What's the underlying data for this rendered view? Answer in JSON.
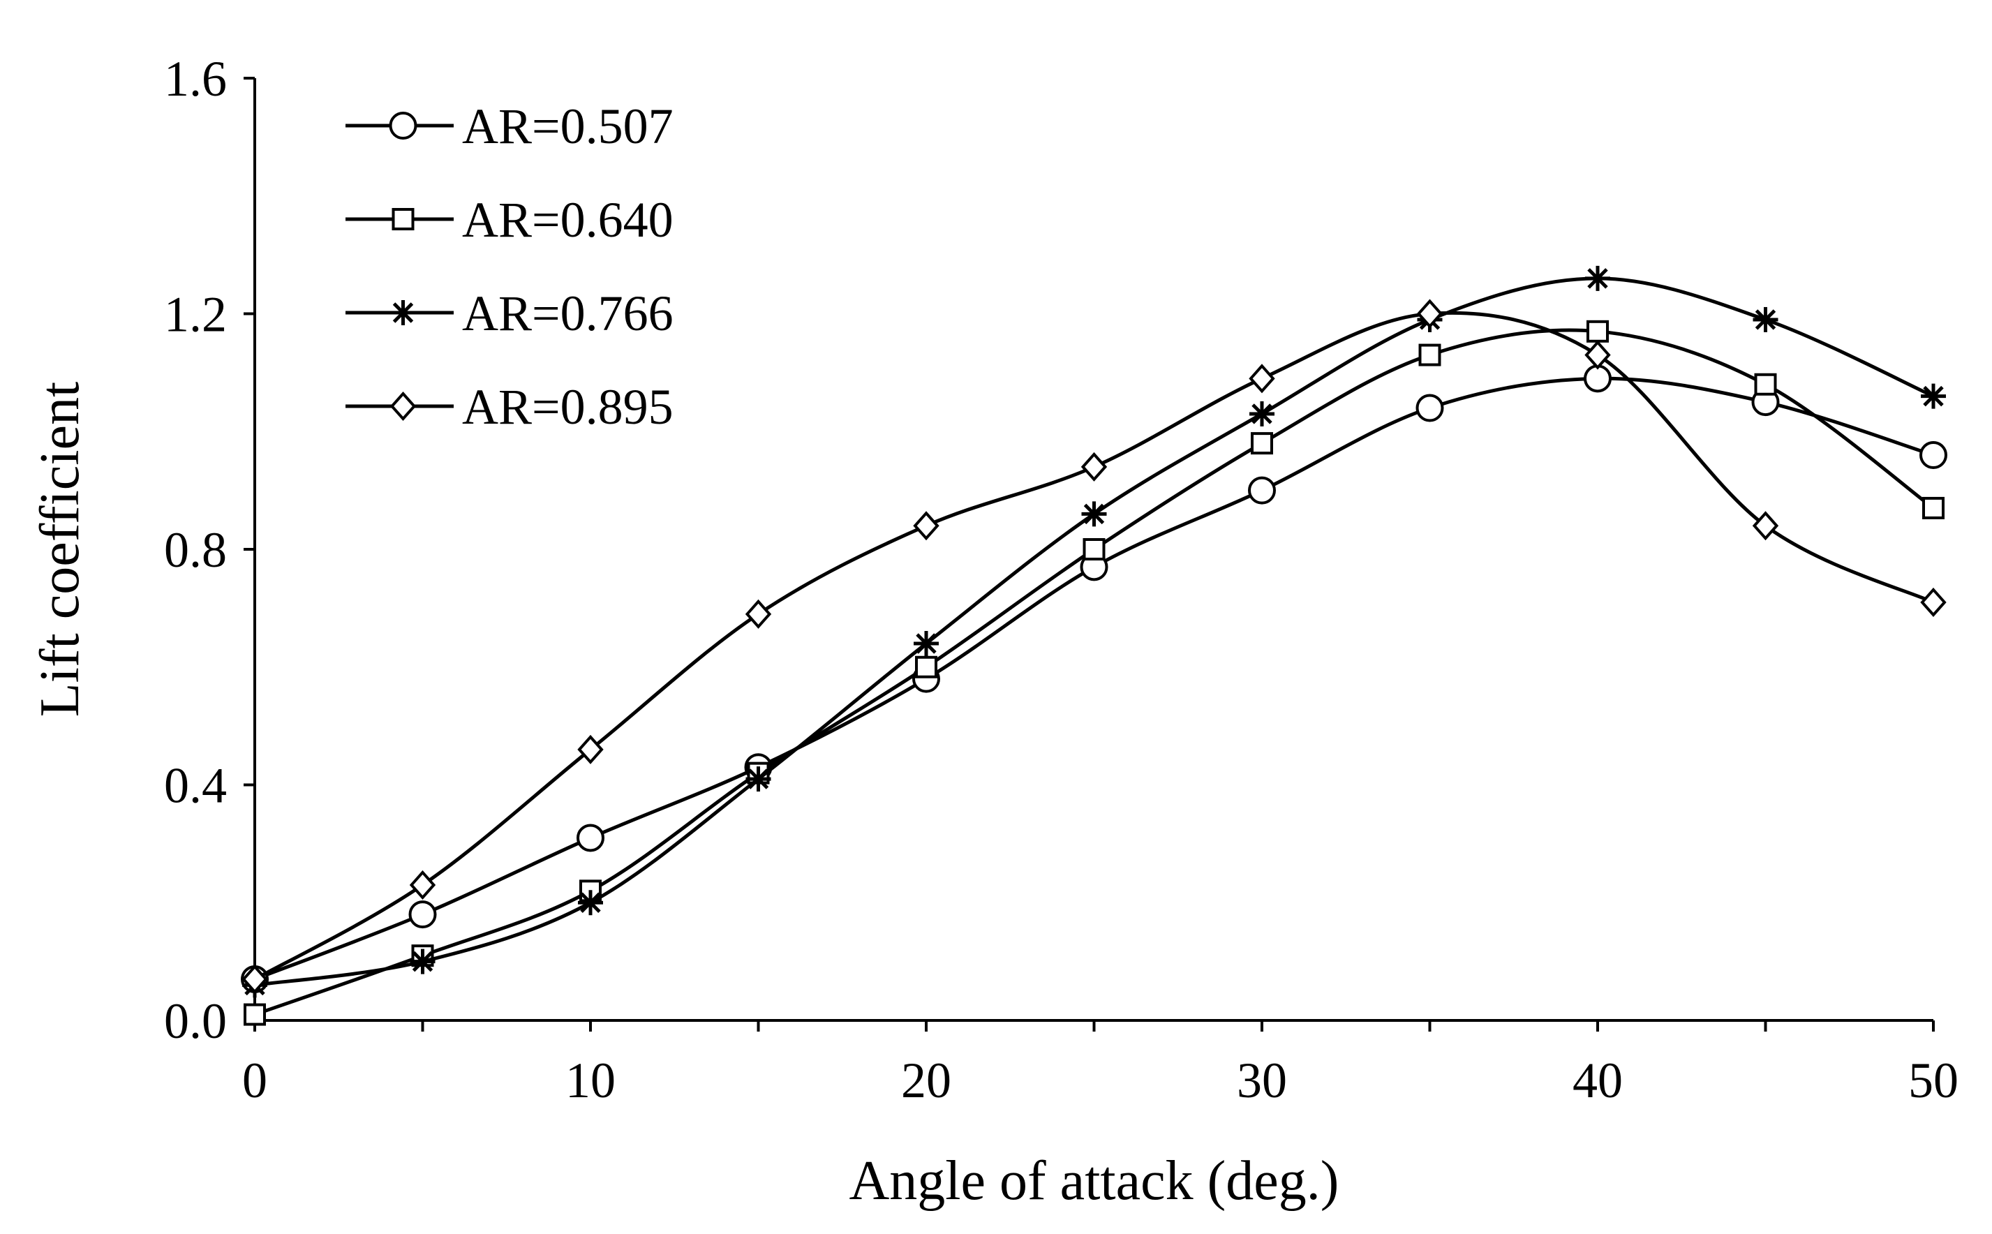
{
  "chart_data": {
    "type": "line",
    "xlabel": "Angle of attack (deg.)",
    "ylabel": "Lift coefficient",
    "xlim": [
      0,
      50
    ],
    "ylim": [
      0,
      1.6
    ],
    "xticks": [
      "0",
      "10",
      "20",
      "30",
      "40",
      "50"
    ],
    "xtick_values": [
      0,
      10,
      20,
      30,
      40,
      50
    ],
    "yticks": [
      "0.0",
      "0.4",
      "0.8",
      "1.2",
      "1.6"
    ],
    "ytick_values": [
      0,
      0.4,
      0.8,
      1.2,
      1.6
    ],
    "grid": false,
    "legend_position": "top-left",
    "x": [
      0,
      5,
      10,
      15,
      20,
      25,
      30,
      35,
      40,
      45,
      50
    ],
    "series": [
      {
        "name": "AR=0.507",
        "marker": "circle",
        "values": [
          0.07,
          0.18,
          0.31,
          0.43,
          0.58,
          0.77,
          0.9,
          1.04,
          1.09,
          1.05,
          0.96
        ]
      },
      {
        "name": "AR=0.640",
        "marker": "square",
        "values": [
          0.01,
          0.11,
          0.22,
          0.42,
          0.6,
          0.8,
          0.98,
          1.13,
          1.17,
          1.08,
          0.87
        ]
      },
      {
        "name": "AR=0.766",
        "marker": "star",
        "values": [
          0.06,
          0.1,
          0.2,
          0.41,
          0.64,
          0.86,
          1.03,
          1.19,
          1.26,
          1.19,
          1.06
        ]
      },
      {
        "name": "AR=0.895",
        "marker": "diamond",
        "values": [
          0.07,
          0.23,
          0.46,
          0.69,
          0.84,
          0.94,
          1.09,
          1.2,
          1.13,
          0.84,
          0.71
        ]
      }
    ]
  }
}
